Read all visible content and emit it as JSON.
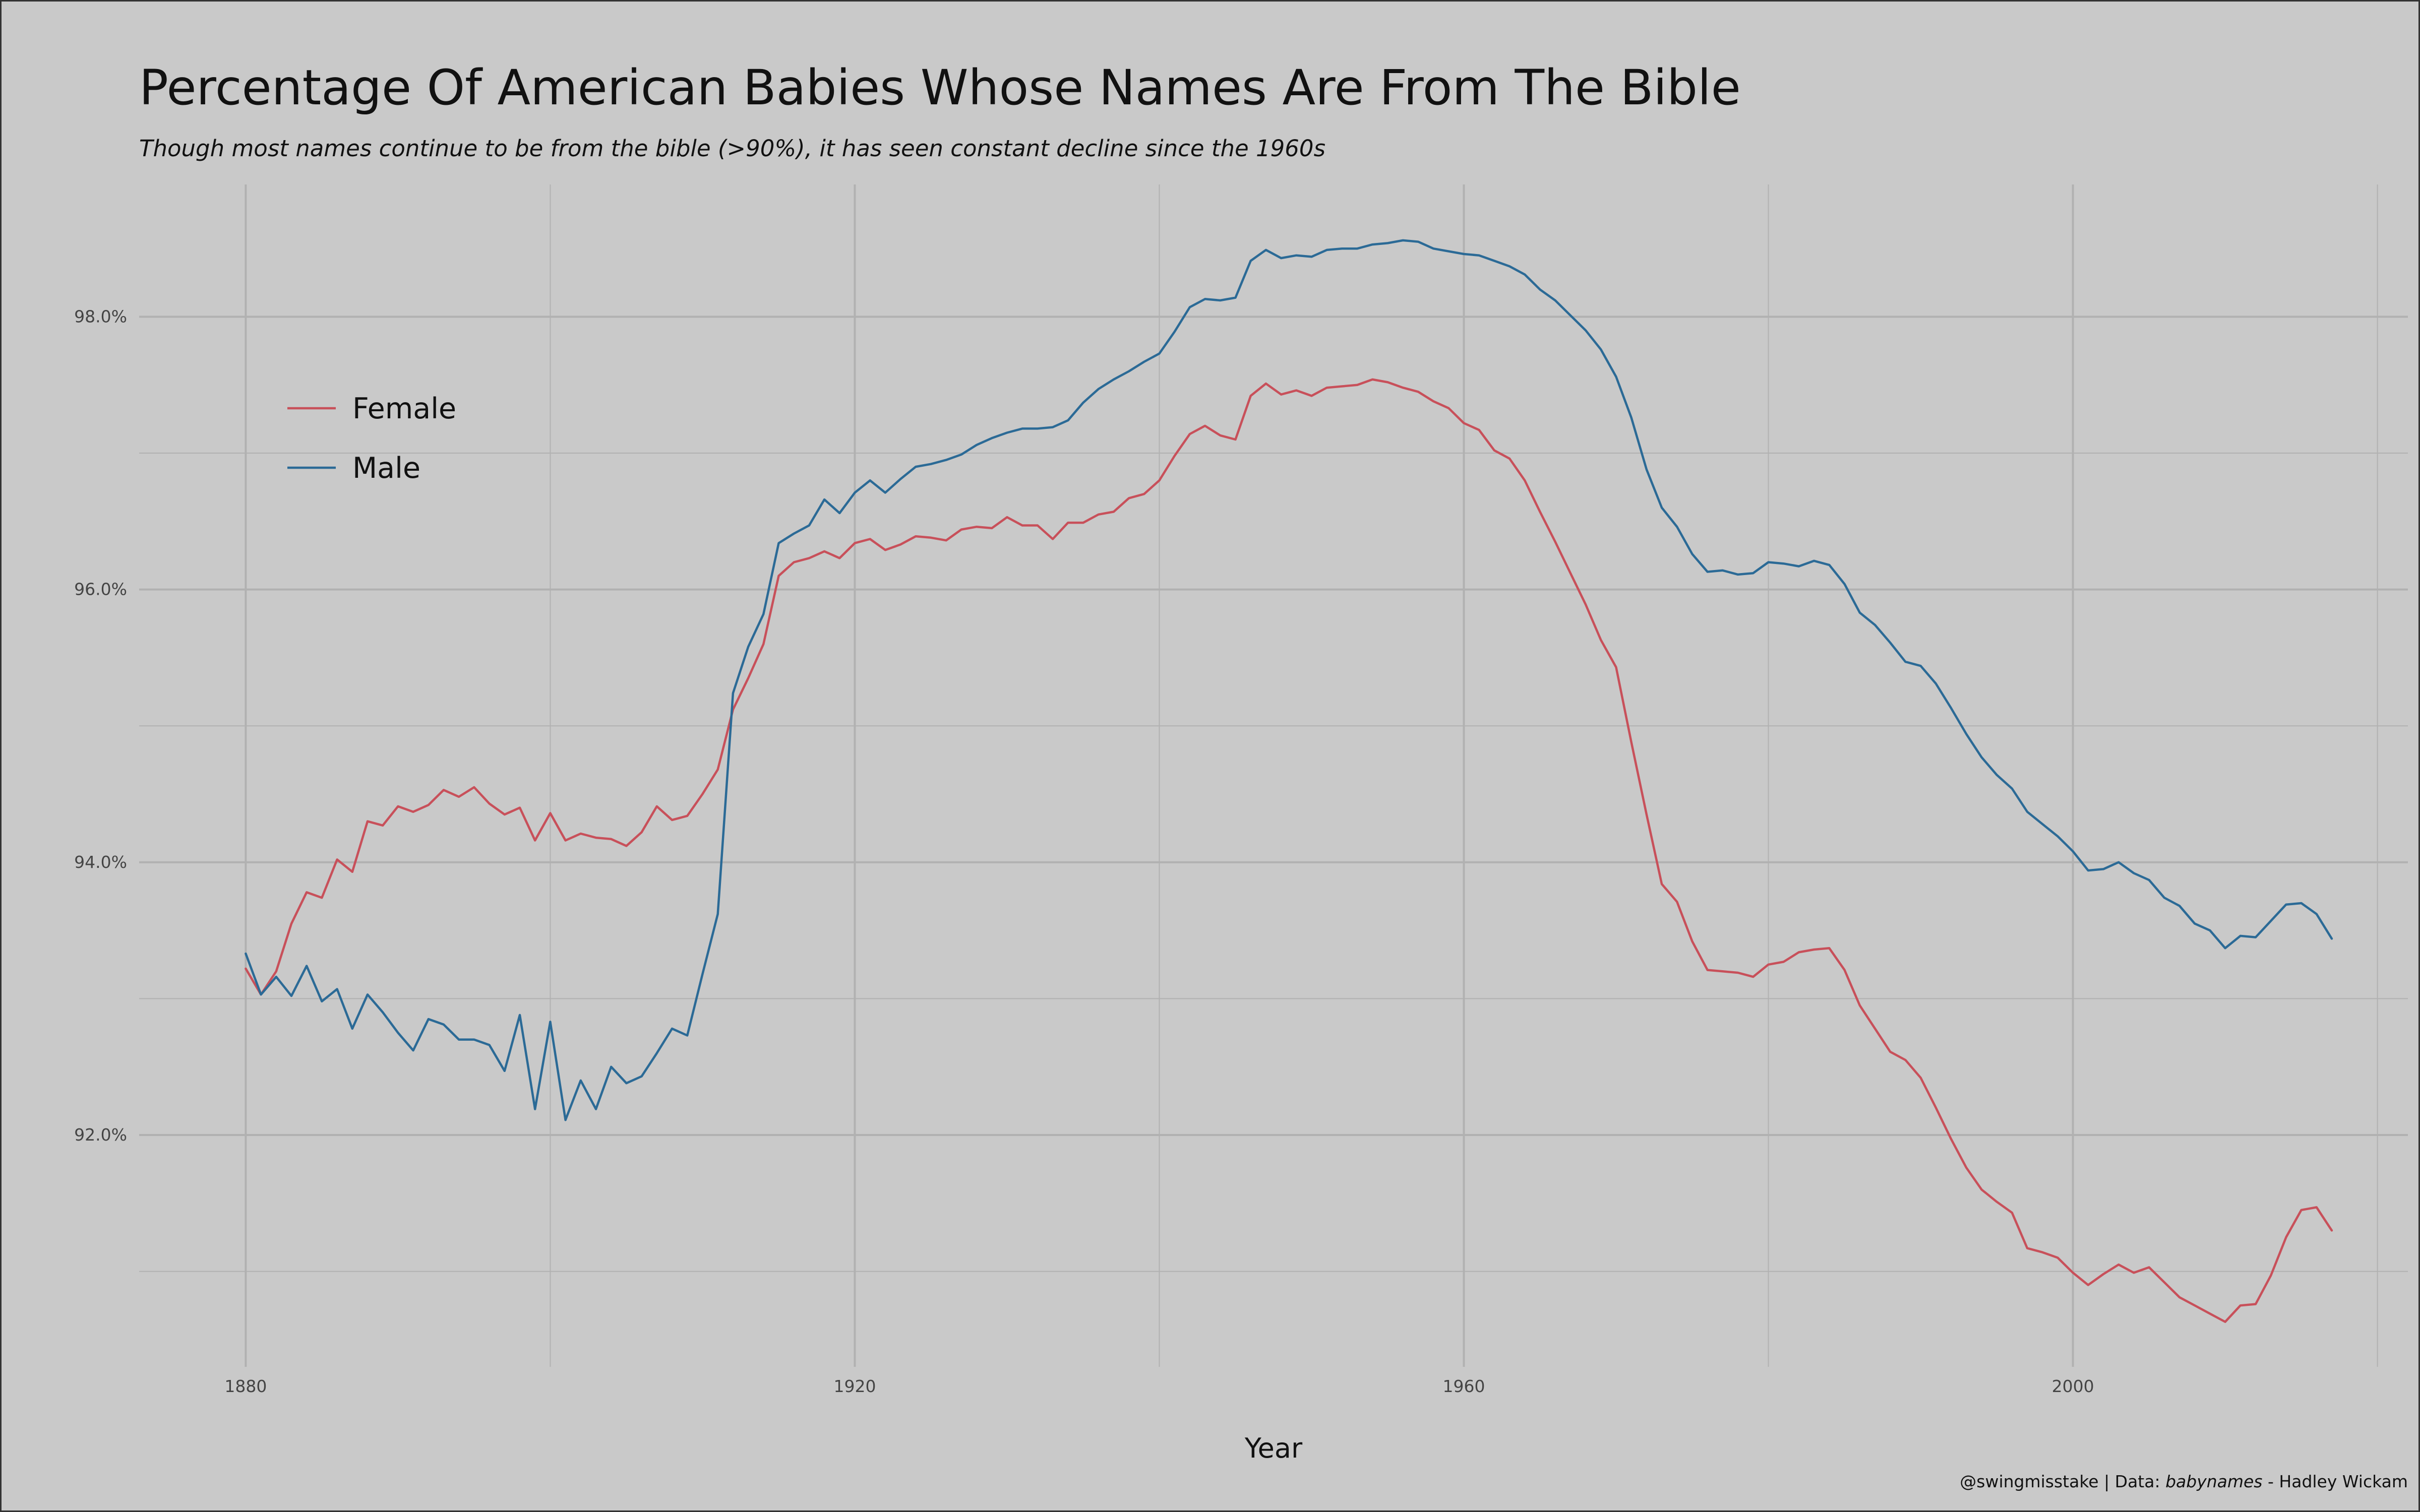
{
  "title": "Percentage Of American Babies Whose Names Are From The Bible",
  "subtitle": "Though most names continue to be from the bible (>90%), it has seen constant decline since the 1960s",
  "caption": {
    "prefix": "@swingmisstake | Data: ",
    "dataset": "babynames",
    "suffix": " - Hadley Wickam"
  },
  "colors": {
    "background": "#c9c9c9",
    "grid": "#b1b1b1",
    "Female": "#c8505a",
    "Male": "#2b6a96"
  },
  "chart_data": {
    "type": "line",
    "xlabel": "Year",
    "ylabel": "",
    "xlim": [
      1873,
      2022
    ],
    "ylim": [
      90.3,
      98.97
    ],
    "x_ticks": [
      1880,
      1920,
      1960,
      2000
    ],
    "x_tick_labels": [
      "1880",
      "1920",
      "1960",
      "2000"
    ],
    "y_ticks": [
      92,
      94,
      96,
      98
    ],
    "y_tick_labels": [
      "92.0%",
      "94.0%",
      "96.0%",
      "98.0%"
    ],
    "grid": true,
    "legend_position": "top-left",
    "x": [
      1880,
      1881,
      1882,
      1883,
      1884,
      1885,
      1886,
      1887,
      1888,
      1889,
      1890,
      1891,
      1892,
      1893,
      1894,
      1895,
      1896,
      1897,
      1898,
      1899,
      1900,
      1901,
      1902,
      1903,
      1904,
      1905,
      1906,
      1907,
      1908,
      1909,
      1910,
      1911,
      1912,
      1913,
      1914,
      1915,
      1916,
      1917,
      1918,
      1919,
      1920,
      1921,
      1922,
      1923,
      1924,
      1925,
      1926,
      1927,
      1928,
      1929,
      1930,
      1931,
      1932,
      1933,
      1934,
      1935,
      1936,
      1937,
      1938,
      1939,
      1940,
      1941,
      1942,
      1943,
      1944,
      1945,
      1946,
      1947,
      1948,
      1949,
      1950,
      1951,
      1952,
      1953,
      1954,
      1955,
      1956,
      1957,
      1958,
      1959,
      1960,
      1961,
      1962,
      1963,
      1964,
      1965,
      1966,
      1967,
      1968,
      1969,
      1970,
      1971,
      1972,
      1973,
      1974,
      1975,
      1976,
      1977,
      1978,
      1979,
      1980,
      1981,
      1982,
      1983,
      1984,
      1985,
      1986,
      1987,
      1988,
      1989,
      1990,
      1991,
      1992,
      1993,
      1994,
      1995,
      1996,
      1997,
      1998,
      1999,
      2000,
      2001,
      2002,
      2003,
      2004,
      2005,
      2006,
      2007,
      2008,
      2009,
      2010,
      2011,
      2012,
      2013,
      2014,
      2015,
      2016,
      2017
    ],
    "series": [
      {
        "name": "Female",
        "values": [
          93.22,
          93.03,
          93.2,
          93.55,
          93.78,
          93.74,
          94.02,
          93.93,
          94.3,
          94.27,
          94.41,
          94.37,
          94.42,
          94.53,
          94.48,
          94.55,
          94.43,
          94.35,
          94.4,
          94.16,
          94.36,
          94.16,
          94.21,
          94.18,
          94.17,
          94.12,
          94.22,
          94.41,
          94.31,
          94.34,
          94.5,
          94.68,
          95.12,
          95.35,
          95.6,
          96.1,
          96.2,
          96.23,
          96.28,
          96.23,
          96.34,
          96.37,
          96.29,
          96.33,
          96.39,
          96.38,
          96.36,
          96.44,
          96.46,
          96.45,
          96.53,
          96.47,
          96.47,
          96.37,
          96.49,
          96.49,
          96.55,
          96.57,
          96.67,
          96.7,
          96.8,
          96.98,
          97.14,
          97.2,
          97.13,
          97.1,
          97.42,
          97.51,
          97.43,
          97.46,
          97.42,
          97.48,
          97.49,
          97.5,
          97.54,
          97.52,
          97.48,
          97.45,
          97.38,
          97.33,
          97.22,
          97.17,
          97.02,
          96.96,
          96.8,
          96.57,
          96.35,
          96.12,
          95.89,
          95.63,
          95.43,
          94.88,
          94.35,
          93.84,
          93.71,
          93.42,
          93.21,
          93.2,
          93.19,
          93.16,
          93.25,
          93.27,
          93.34,
          93.36,
          93.37,
          93.21,
          92.95,
          92.78,
          92.61,
          92.55,
          92.42,
          92.2,
          91.97,
          91.76,
          91.6,
          91.51,
          91.43,
          91.17,
          91.14,
          91.1,
          90.99,
          90.9,
          90.98,
          91.05,
          90.99,
          91.03,
          90.92,
          90.81,
          90.75,
          90.69,
          90.63,
          90.75,
          90.76,
          90.97,
          91.25,
          91.45,
          91.47,
          91.3
        ]
      },
      {
        "name": "Male",
        "values": [
          93.33,
          93.03,
          93.16,
          93.02,
          93.24,
          92.98,
          93.07,
          92.78,
          93.03,
          92.9,
          92.75,
          92.62,
          92.85,
          92.81,
          92.7,
          92.7,
          92.66,
          92.47,
          92.88,
          92.19,
          92.83,
          92.11,
          92.4,
          92.19,
          92.5,
          92.38,
          92.43,
          92.6,
          92.78,
          92.73,
          93.18,
          93.62,
          95.24,
          95.58,
          95.82,
          96.34,
          96.41,
          96.47,
          96.66,
          96.56,
          96.71,
          96.8,
          96.71,
          96.81,
          96.9,
          96.92,
          96.95,
          96.99,
          97.06,
          97.11,
          97.15,
          97.18,
          97.18,
          97.19,
          97.24,
          97.37,
          97.47,
          97.54,
          97.6,
          97.67,
          97.73,
          97.89,
          98.07,
          98.13,
          98.12,
          98.14,
          98.41,
          98.49,
          98.43,
          98.45,
          98.44,
          98.49,
          98.5,
          98.5,
          98.53,
          98.54,
          98.56,
          98.55,
          98.5,
          98.48,
          98.46,
          98.45,
          98.41,
          98.37,
          98.31,
          98.2,
          98.12,
          98.01,
          97.9,
          97.76,
          97.56,
          97.26,
          96.88,
          96.6,
          96.46,
          96.26,
          96.13,
          96.14,
          96.11,
          96.12,
          96.2,
          96.19,
          96.17,
          96.21,
          96.18,
          96.04,
          95.83,
          95.74,
          95.61,
          95.47,
          95.44,
          95.31,
          95.13,
          94.94,
          94.77,
          94.64,
          94.54,
          94.37,
          94.28,
          94.19,
          94.08,
          93.94,
          93.95,
          94.0,
          93.92,
          93.87,
          93.74,
          93.68,
          93.55,
          93.5,
          93.37,
          93.46,
          93.45,
          93.57,
          93.69,
          93.7,
          93.62,
          93.44
        ]
      }
    ]
  }
}
